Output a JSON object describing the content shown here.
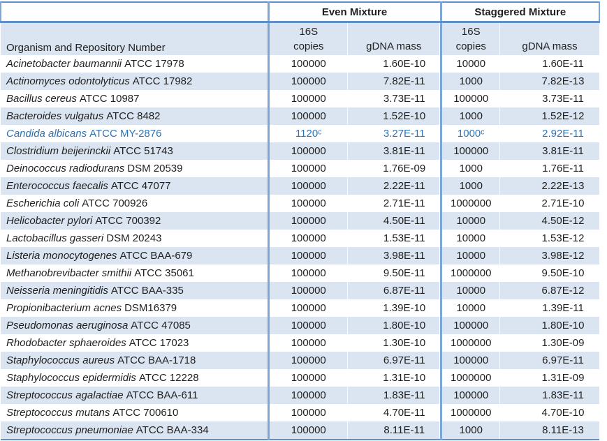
{
  "colors": {
    "stripe": "#DBE5F1",
    "hline": "#6090C8",
    "vline": "#7CA6D6",
    "highlight_text": "#2E74B5"
  },
  "table": {
    "sections": {
      "even": {
        "title": "Even Mixture"
      },
      "staggered": {
        "title": "Staggered Mixture"
      }
    },
    "organism_header": "Organism and Repository Number",
    "copies_header_line1": "16S",
    "copies_header_line2": "copies",
    "gdna_header": "gDNA mass",
    "rows": [
      {
        "name": "Acinetobacter baumannii",
        "repo": "ATCC 17978",
        "even_copies": "100000",
        "even_gdna": "1.60E-10",
        "stag_copies": "10000",
        "stag_gdna": "1.60E-11"
      },
      {
        "name": "Actinomyces odontolyticus",
        "repo": "ATCC 17982",
        "even_copies": "100000",
        "even_gdna": "7.82E-11",
        "stag_copies": "1000",
        "stag_gdna": "7.82E-13"
      },
      {
        "name": "Bacillus cereus",
        "repo": "ATCC 10987",
        "even_copies": "100000",
        "even_gdna": "3.73E-11",
        "stag_copies": "100000",
        "stag_gdna": "3.73E-11"
      },
      {
        "name": "Bacteroides vulgatus",
        "repo": "ATCC 8482",
        "even_copies": "100000",
        "even_gdna": "1.52E-10",
        "stag_copies": "1000",
        "stag_gdna": "1.52E-12"
      },
      {
        "name": "Candida albicans",
        "repo": "ATCC MY-2876",
        "even_copies": "1120ᶜ",
        "even_gdna": "3.27E-11",
        "stag_copies": "1000ᶜ",
        "stag_gdna": "2.92E-11",
        "highlight": true
      },
      {
        "name": "Clostridium beijerinckii",
        "repo": "ATCC 51743",
        "even_copies": "100000",
        "even_gdna": "3.81E-11",
        "stag_copies": "100000",
        "stag_gdna": "3.81E-11"
      },
      {
        "name": "Deinococcus radiodurans",
        "repo": "DSM 20539",
        "even_copies": "100000",
        "even_gdna": "1.76E-09",
        "stag_copies": "1000",
        "stag_gdna": "1.76E-11"
      },
      {
        "name": "Enterococcus faecalis",
        "repo": "ATCC 47077",
        "even_copies": "100000",
        "even_gdna": "2.22E-11",
        "stag_copies": "1000",
        "stag_gdna": "2.22E-13"
      },
      {
        "name": "Escherichia coli",
        "repo": "ATCC 700926",
        "even_copies": "100000",
        "even_gdna": "2.71E-11",
        "stag_copies": "1000000",
        "stag_gdna": "2.71E-10"
      },
      {
        "name": "Helicobacter pylori",
        "repo": "ATCC 700392",
        "even_copies": "100000",
        "even_gdna": "4.50E-11",
        "stag_copies": "10000",
        "stag_gdna": "4.50E-12"
      },
      {
        "name": "Lactobacillus gasseri",
        "repo": "DSM 20243",
        "even_copies": "100000",
        "even_gdna": "1.53E-11",
        "stag_copies": "10000",
        "stag_gdna": "1.53E-12"
      },
      {
        "name": "Listeria monocytogenes",
        "repo": "ATCC BAA-679",
        "even_copies": "100000",
        "even_gdna": "3.98E-11",
        "stag_copies": "10000",
        "stag_gdna": "3.98E-12"
      },
      {
        "name": "Methanobrevibacter smithii",
        "repo": "ATCC 35061",
        "even_copies": "100000",
        "even_gdna": "9.50E-11",
        "stag_copies": "1000000",
        "stag_gdna": "9.50E-10"
      },
      {
        "name": "Neisseria meningitidis",
        "repo": "ATCC BAA-335",
        "even_copies": "100000",
        "even_gdna": "6.87E-11",
        "stag_copies": "10000",
        "stag_gdna": "6.87E-12"
      },
      {
        "name": "Propionibacterium acnes",
        "repo": "DSM16379",
        "even_copies": "100000",
        "even_gdna": "1.39E-10",
        "stag_copies": "10000",
        "stag_gdna": "1.39E-11"
      },
      {
        "name": "Pseudomonas aeruginosa",
        "repo": "ATCC 47085",
        "even_copies": "100000",
        "even_gdna": "1.80E-10",
        "stag_copies": "100000",
        "stag_gdna": "1.80E-10"
      },
      {
        "name": "Rhodobacter sphaeroides",
        "repo": "ATCC 17023",
        "even_copies": "100000",
        "even_gdna": "1.30E-10",
        "stag_copies": "1000000",
        "stag_gdna": "1.30E-09"
      },
      {
        "name": "Staphylococcus aureus",
        "repo": "ATCC BAA-1718",
        "even_copies": "100000",
        "even_gdna": "6.97E-11",
        "stag_copies": "100000",
        "stag_gdna": "6.97E-11"
      },
      {
        "name": "Staphylococcus epidermidis",
        "repo": "ATCC 12228",
        "even_copies": "100000",
        "even_gdna": "1.31E-10",
        "stag_copies": "1000000",
        "stag_gdna": "1.31E-09"
      },
      {
        "name": "Streptococcus agalactiae",
        "repo": "ATCC BAA-611",
        "even_copies": "100000",
        "even_gdna": "1.83E-11",
        "stag_copies": "100000",
        "stag_gdna": "1.83E-11"
      },
      {
        "name": "Streptococcus mutans",
        "repo": "ATCC 700610",
        "even_copies": "100000",
        "even_gdna": "4.70E-11",
        "stag_copies": "1000000",
        "stag_gdna": "4.70E-10"
      },
      {
        "name": "Streptococcus pneumoniae",
        "repo": "ATCC BAA-334",
        "even_copies": "100000",
        "even_gdna": "8.11E-11",
        "stag_copies": "1000",
        "stag_gdna": "8.11E-13"
      }
    ]
  }
}
